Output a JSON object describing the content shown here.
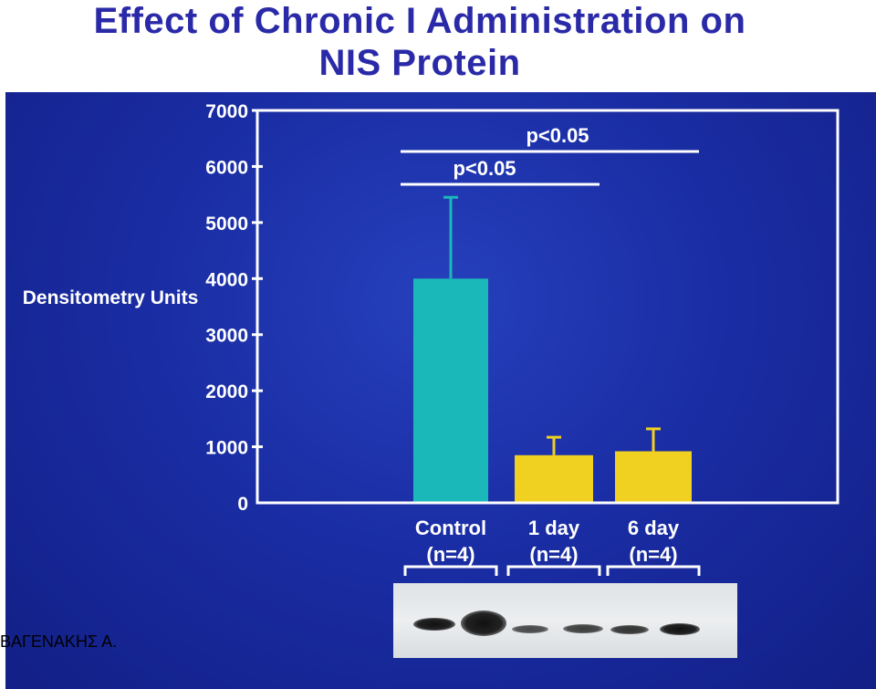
{
  "title": {
    "line1": "Effect of Chronic I Administration on",
    "line2": "NIS Protein"
  },
  "watermark": "ΒΑΓΕΝΑΚΗΣ Α.",
  "colors": {
    "background": "#1a2da4",
    "title": "#2a2aa8",
    "control_bar": "#1ab8b8",
    "treatment_bar": "#f0d020",
    "axis": "#ffffff"
  },
  "chart_data": {
    "type": "bar",
    "ylabel": "Densitometry Units",
    "xlabel": "",
    "ylim": [
      0,
      7000
    ],
    "yticks": [
      "0",
      "1000",
      "2000",
      "3000",
      "4000",
      "5000",
      "6000",
      "7000"
    ],
    "categories": [
      "Control (n=4)",
      "1 day (n=4)",
      "6 day (n=4)"
    ],
    "category_lines": [
      [
        "Control",
        "(n=4)"
      ],
      [
        "1 day",
        "(n=4)"
      ],
      [
        "6 day",
        "(n=4)"
      ]
    ],
    "values": [
      4000,
      850,
      920
    ],
    "error": [
      1450,
      320,
      400
    ],
    "bar_colors": [
      "#1ab8b8",
      "#f0d020",
      "#f0d020"
    ],
    "grid": false,
    "legend": "none",
    "annotations": [
      {
        "text": "p<0.05",
        "from": "Control (n=4)",
        "to": "1 day (n=4)",
        "level": 1
      },
      {
        "text": "p<0.05",
        "from": "Control (n=4)",
        "to": "6 day (n=4)",
        "level": 2
      }
    ]
  },
  "blot": {
    "description_icon": "western-blot-image",
    "lanes": 6
  }
}
